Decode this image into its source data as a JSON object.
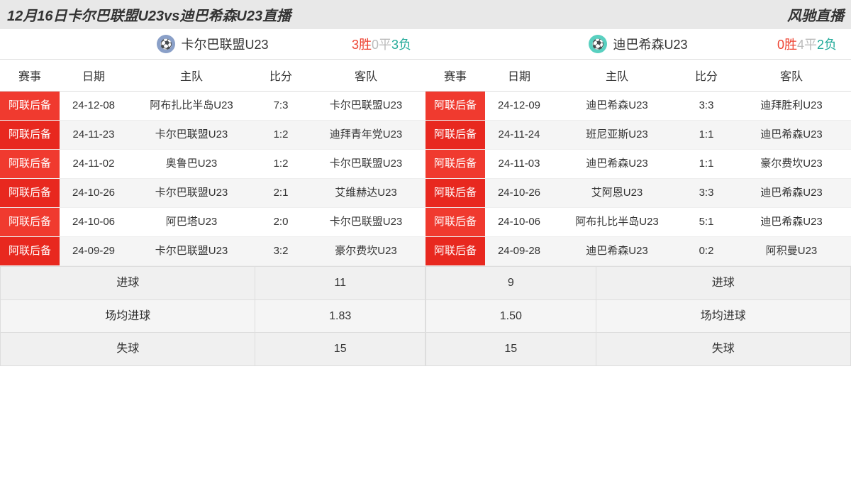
{
  "header": {
    "title": "12月16日卡尔巴联盟U23vs迪巴希森U23直播",
    "brand": "风驰直播"
  },
  "columns": [
    "赛事",
    "日期",
    "主队",
    "比分",
    "客队"
  ],
  "left": {
    "name": "卡尔巴联盟U23",
    "icon_bg": "#8aa0c8",
    "record": {
      "w": "3胜",
      "d": "0平",
      "l": "3负"
    },
    "rows": [
      {
        "comp": "阿联后备",
        "date": "24-12-08",
        "home": "阿布扎比半岛U23",
        "score": "7:3",
        "away": "卡尔巴联盟U23"
      },
      {
        "comp": "阿联后备",
        "date": "24-11-23",
        "home": "卡尔巴联盟U23",
        "score": "1:2",
        "away": "迪拜青年党U23"
      },
      {
        "comp": "阿联后备",
        "date": "24-11-02",
        "home": "奥鲁巴U23",
        "score": "1:2",
        "away": "卡尔巴联盟U23"
      },
      {
        "comp": "阿联后备",
        "date": "24-10-26",
        "home": "卡尔巴联盟U23",
        "score": "2:1",
        "away": "艾维赫达U23"
      },
      {
        "comp": "阿联后备",
        "date": "24-10-06",
        "home": "阿巴塔U23",
        "score": "2:0",
        "away": "卡尔巴联盟U23"
      },
      {
        "comp": "阿联后备",
        "date": "24-09-29",
        "home": "卡尔巴联盟U23",
        "score": "3:2",
        "away": "豪尔费坎U23"
      }
    ],
    "summary": [
      {
        "label": "进球",
        "value": "11"
      },
      {
        "label": "场均进球",
        "value": "1.83"
      },
      {
        "label": "失球",
        "value": "15"
      }
    ]
  },
  "right": {
    "name": "迪巴希森U23",
    "icon_bg": "#59d0c0",
    "record": {
      "w": "0胜",
      "d": "4平",
      "l": "2负"
    },
    "rows": [
      {
        "comp": "阿联后备",
        "date": "24-12-09",
        "home": "迪巴希森U23",
        "score": "3:3",
        "away": "迪拜胜利U23"
      },
      {
        "comp": "阿联后备",
        "date": "24-11-24",
        "home": "班尼亚斯U23",
        "score": "1:1",
        "away": "迪巴希森U23"
      },
      {
        "comp": "阿联后备",
        "date": "24-11-03",
        "home": "迪巴希森U23",
        "score": "1:1",
        "away": "豪尔费坎U23"
      },
      {
        "comp": "阿联后备",
        "date": "24-10-26",
        "home": "艾阿恩U23",
        "score": "3:3",
        "away": "迪巴希森U23"
      },
      {
        "comp": "阿联后备",
        "date": "24-10-06",
        "home": "阿布扎比半岛U23",
        "score": "5:1",
        "away": "迪巴希森U23"
      },
      {
        "comp": "阿联后备",
        "date": "24-09-28",
        "home": "迪巴希森U23",
        "score": "0:2",
        "away": "阿积曼U23"
      }
    ],
    "summary": [
      {
        "label": "进球",
        "value": "9"
      },
      {
        "label": "场均进球",
        "value": "1.50"
      },
      {
        "label": "失球",
        "value": "15"
      }
    ]
  }
}
